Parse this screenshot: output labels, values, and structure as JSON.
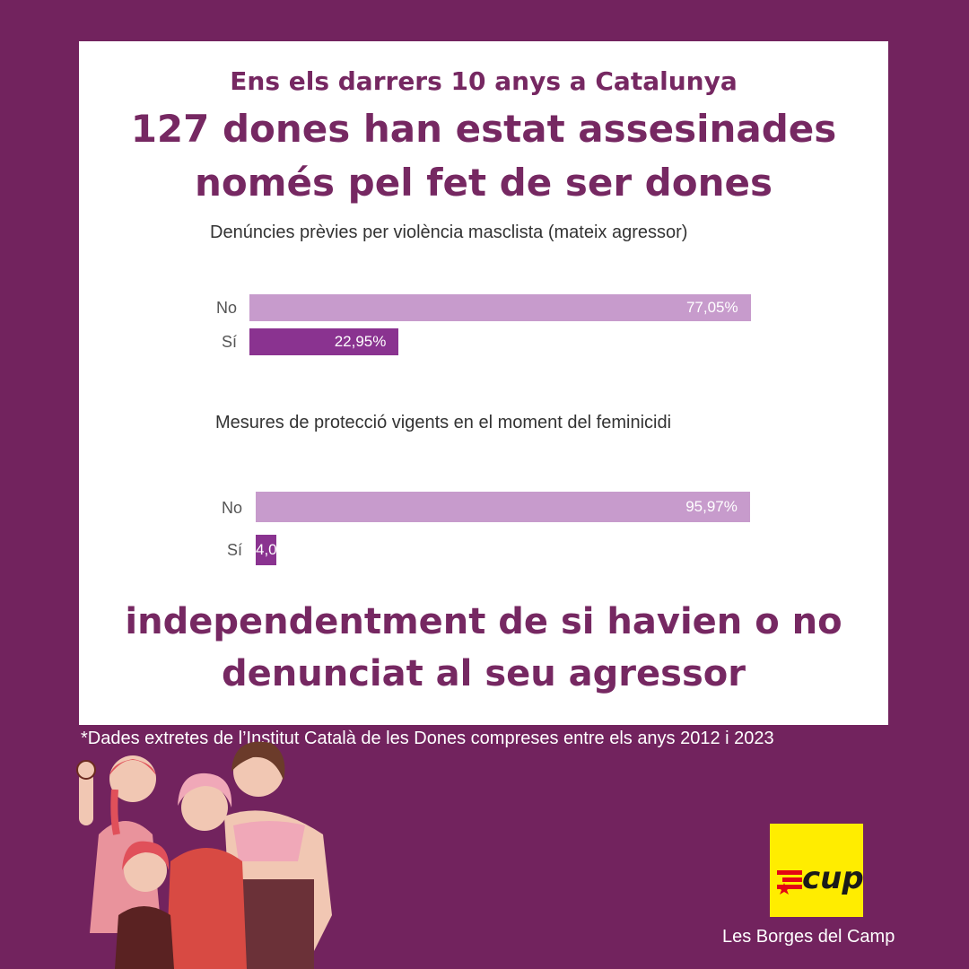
{
  "header": {
    "subtitle": "Ens els darrers 10 anys a Catalunya",
    "title_line1": "127 dones han estat assesinades",
    "title_line2": "només pel fet de ser dones"
  },
  "chart_data": [
    {
      "type": "bar",
      "title": "Denúncies prèvies per violència masclista (mateix agressor)",
      "categories": [
        "No",
        "Sí"
      ],
      "values": [
        77.05,
        22.95
      ],
      "value_labels": [
        "77,05%",
        "22,95%"
      ],
      "unit": "%",
      "xlim": [
        0,
        100
      ],
      "colors": [
        "#c79bcc",
        "#8a3390"
      ]
    },
    {
      "type": "bar",
      "title": "Mesures de protecció vigents en el moment del feminicidi",
      "categories": [
        "No",
        "Sí"
      ],
      "values": [
        95.97,
        4.03
      ],
      "value_labels": [
        "95,97%",
        "4,0"
      ],
      "unit": "%",
      "xlim": [
        0,
        100
      ],
      "colors": [
        "#c79bcc",
        "#8a3390"
      ]
    }
  ],
  "closing": {
    "line1": "independentment de si havien o no",
    "line2": "denunciat al seu agressor"
  },
  "footnote": "*Dades extretes de l’Institut Català de les Dones compreses entre els anys 2012 i 2023",
  "logo": {
    "text": "cup",
    "icon": "cup-logo",
    "color": "#ffed00",
    "star_color": "#e30613"
  },
  "locality": "Les Borges del Camp",
  "illustration": {
    "icon": "women-group-illustration"
  },
  "colors": {
    "background": "#72235e",
    "accent": "#762862"
  }
}
